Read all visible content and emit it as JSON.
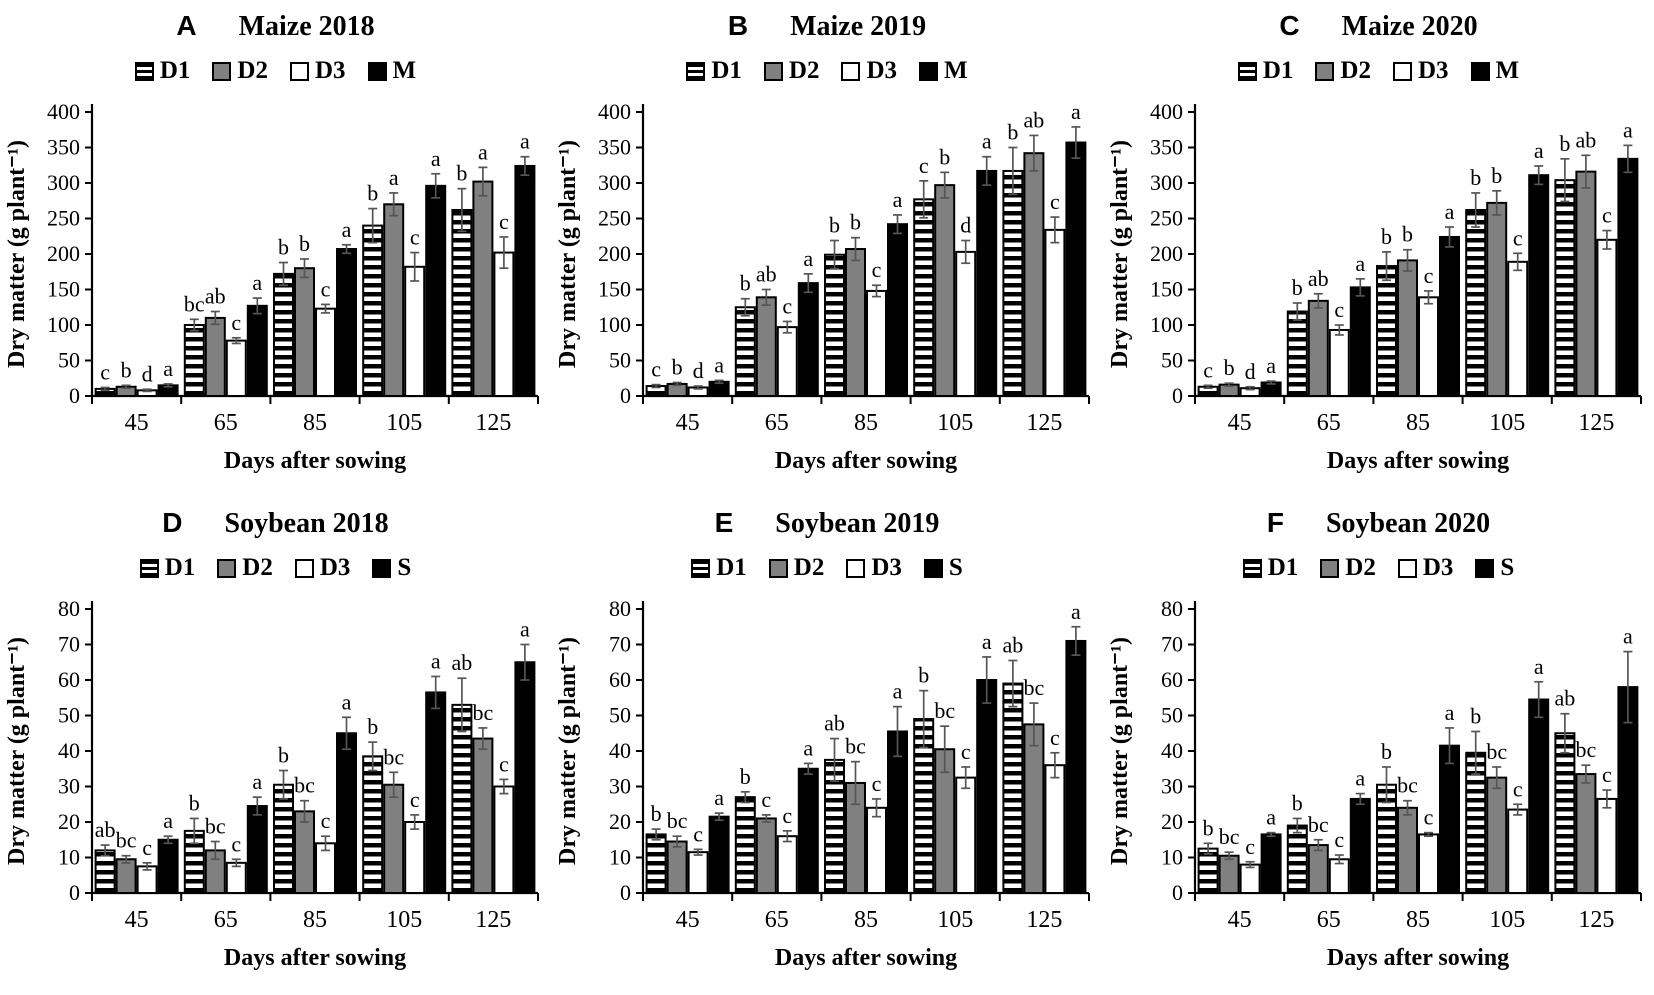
{
  "figure": {
    "background": "#ffffff",
    "xlabel": "Days after sowing",
    "ylabel": "Dry matter (g plant⁻¹)"
  },
  "colors": {
    "bar_gray": "#808080",
    "bar_black": "#000000",
    "bar_white": "#ffffff",
    "bar_outline": "#000000",
    "stripe": "#000000",
    "error_bar": "#555555",
    "axis": "#000000",
    "text": "#000000"
  },
  "chart_data": [
    {
      "type": "bar",
      "panel": "A",
      "title": "Maize 2018",
      "xlabel": "Days after sowing",
      "ylabel": "Dry matter (g plant⁻¹)",
      "categories": [
        "45",
        "65",
        "85",
        "105",
        "125"
      ],
      "ylim": [
        0,
        400
      ],
      "ytick_step": 50,
      "grid": false,
      "legend_position": "top",
      "series": [
        {
          "name": "D1",
          "pattern": "striped",
          "values": [
            10,
            100,
            172,
            240,
            262
          ],
          "errors": [
            2,
            8,
            16,
            24,
            30
          ],
          "letters": [
            "c",
            "bc",
            "b",
            "b",
            "b"
          ]
        },
        {
          "name": "D2",
          "pattern": "gray",
          "values": [
            13,
            110,
            180,
            270,
            302
          ],
          "errors": [
            2,
            9,
            13,
            16,
            20
          ],
          "letters": [
            "b",
            "ab",
            "b",
            "a",
            "a"
          ]
        },
        {
          "name": "D3",
          "pattern": "white",
          "values": [
            8,
            78,
            123,
            182,
            202
          ],
          "errors": [
            1.5,
            4,
            6,
            20,
            22
          ],
          "letters": [
            "d",
            "c",
            "c",
            "c",
            "c"
          ]
        },
        {
          "name": "M",
          "pattern": "black",
          "values": [
            15,
            127,
            207,
            296,
            324
          ],
          "errors": [
            2,
            11,
            6,
            17,
            13
          ],
          "letters": [
            "a",
            "a",
            "a",
            "a",
            "a"
          ]
        }
      ]
    },
    {
      "type": "bar",
      "panel": "B",
      "title": "Maize 2019",
      "xlabel": "Days after sowing",
      "ylabel": "Dry matter (g plant⁻¹)",
      "categories": [
        "45",
        "65",
        "85",
        "105",
        "125"
      ],
      "ylim": [
        0,
        400
      ],
      "ytick_step": 50,
      "grid": false,
      "legend_position": "top",
      "series": [
        {
          "name": "D1",
          "pattern": "striped",
          "values": [
            14,
            125,
            199,
            277,
            317
          ],
          "errors": [
            2,
            12,
            20,
            26,
            33
          ],
          "letters": [
            "c",
            "b",
            "b",
            "c",
            "b"
          ]
        },
        {
          "name": "D2",
          "pattern": "gray",
          "values": [
            17,
            139,
            207,
            297,
            342
          ],
          "errors": [
            2,
            11,
            16,
            18,
            25
          ],
          "letters": [
            "b",
            "ab",
            "b",
            "b",
            "ab"
          ]
        },
        {
          "name": "D3",
          "pattern": "white",
          "values": [
            12,
            97,
            148,
            203,
            234
          ],
          "errors": [
            2,
            8,
            8,
            16,
            18
          ],
          "letters": [
            "d",
            "c",
            "c",
            "d",
            "c"
          ]
        },
        {
          "name": "M",
          "pattern": "black",
          "values": [
            20,
            159,
            242,
            317,
            357
          ],
          "errors": [
            2,
            13,
            13,
            20,
            22
          ],
          "letters": [
            "a",
            "a",
            "a",
            "a",
            "a"
          ]
        }
      ]
    },
    {
      "type": "bar",
      "panel": "C",
      "title": "Maize 2020",
      "xlabel": "Days after sowing",
      "ylabel": "Dry matter (g plant⁻¹)",
      "categories": [
        "45",
        "65",
        "85",
        "105",
        "125"
      ],
      "ylim": [
        0,
        400
      ],
      "ytick_step": 50,
      "grid": false,
      "legend_position": "top",
      "series": [
        {
          "name": "D1",
          "pattern": "striped",
          "values": [
            13,
            119,
            183,
            262,
            304
          ],
          "errors": [
            2,
            12,
            20,
            24,
            30
          ],
          "letters": [
            "c",
            "b",
            "b",
            "b",
            "b"
          ]
        },
        {
          "name": "D2",
          "pattern": "gray",
          "values": [
            16,
            134,
            191,
            272,
            316
          ],
          "errors": [
            2,
            10,
            15,
            17,
            23
          ],
          "letters": [
            "b",
            "ab",
            "b",
            "b",
            "ab"
          ]
        },
        {
          "name": "D3",
          "pattern": "white",
          "values": [
            11,
            93,
            139,
            189,
            220
          ],
          "errors": [
            2,
            7,
            9,
            12,
            13
          ],
          "letters": [
            "d",
            "c",
            "c",
            "c",
            "c"
          ]
        },
        {
          "name": "M",
          "pattern": "black",
          "values": [
            19,
            153,
            224,
            311,
            334
          ],
          "errors": [
            2,
            12,
            14,
            13,
            19
          ],
          "letters": [
            "a",
            "a",
            "a",
            "a",
            "a"
          ]
        }
      ]
    },
    {
      "type": "bar",
      "panel": "D",
      "title": "Soybean 2018",
      "xlabel": "Days after sowing",
      "ylabel": "Dry matter (g plant⁻¹)",
      "categories": [
        "45",
        "65",
        "85",
        "105",
        "125"
      ],
      "ylim": [
        0,
        80
      ],
      "ytick_step": 10,
      "grid": false,
      "legend_position": "top",
      "series": [
        {
          "name": "D1",
          "pattern": "striped",
          "values": [
            12,
            17.5,
            30.5,
            38.5,
            53
          ],
          "errors": [
            1.5,
            3.5,
            4,
            4,
            7.5
          ],
          "letters": [
            "ab",
            "b",
            "b",
            "b",
            "ab"
          ]
        },
        {
          "name": "D2",
          "pattern": "gray",
          "values": [
            9.5,
            12,
            23,
            30.5,
            43.5
          ],
          "errors": [
            1,
            2.5,
            3,
            3.5,
            3
          ],
          "letters": [
            "bc",
            "bc",
            "bc",
            "bc",
            "bc"
          ]
        },
        {
          "name": "D3",
          "pattern": "white",
          "values": [
            7.5,
            8.5,
            14,
            20,
            30
          ],
          "errors": [
            1,
            1,
            2,
            2,
            2
          ],
          "letters": [
            "c",
            "c",
            "c",
            "c",
            "c"
          ]
        },
        {
          "name": "S",
          "pattern": "black",
          "values": [
            15,
            24.5,
            45,
            56.5,
            65
          ],
          "errors": [
            1,
            2.5,
            4.5,
            4.5,
            5
          ],
          "letters": [
            "a",
            "a",
            "a",
            "a",
            "a"
          ]
        }
      ]
    },
    {
      "type": "bar",
      "panel": "E",
      "title": "Soybean 2019",
      "xlabel": "Days after sowing",
      "ylabel": "Dry matter (g plant⁻¹)",
      "categories": [
        "45",
        "65",
        "85",
        "105",
        "125"
      ],
      "ylim": [
        0,
        80
      ],
      "ytick_step": 10,
      "grid": false,
      "legend_position": "top",
      "series": [
        {
          "name": "D1",
          "pattern": "striped",
          "values": [
            16.5,
            27,
            37.5,
            49,
            59
          ],
          "errors": [
            1.5,
            1.5,
            6,
            8,
            6.5
          ],
          "letters": [
            "b",
            "b",
            "ab",
            "b",
            "ab"
          ]
        },
        {
          "name": "D2",
          "pattern": "gray",
          "values": [
            14.5,
            21,
            31,
            40.5,
            47.5
          ],
          "errors": [
            1.5,
            1,
            6,
            6.5,
            6
          ],
          "letters": [
            "bc",
            "c",
            "bc",
            "bc",
            "bc"
          ]
        },
        {
          "name": "D3",
          "pattern": "white",
          "values": [
            11.5,
            16,
            24,
            32.5,
            36
          ],
          "errors": [
            0.8,
            1.5,
            2.5,
            3,
            3.5
          ],
          "letters": [
            "c",
            "c",
            "c",
            "c",
            "c"
          ]
        },
        {
          "name": "S",
          "pattern": "black",
          "values": [
            21.5,
            35,
            45.5,
            60,
            71
          ],
          "errors": [
            1,
            1.5,
            7,
            6.5,
            4
          ],
          "letters": [
            "a",
            "a",
            "a",
            "a",
            "a"
          ]
        }
      ]
    },
    {
      "type": "bar",
      "panel": "F",
      "title": "Soybean 2020",
      "xlabel": "Days after sowing",
      "ylabel": "Dry matter (g plant⁻¹)",
      "categories": [
        "45",
        "65",
        "85",
        "105",
        "125"
      ],
      "ylim": [
        0,
        80
      ],
      "ytick_step": 10,
      "grid": false,
      "legend_position": "top",
      "series": [
        {
          "name": "D1",
          "pattern": "striped",
          "values": [
            12.5,
            19,
            30.5,
            39.5,
            45
          ],
          "errors": [
            1.5,
            2,
            5,
            6,
            5.5
          ],
          "letters": [
            "b",
            "b",
            "b",
            "b",
            "ab"
          ]
        },
        {
          "name": "D2",
          "pattern": "gray",
          "values": [
            10.5,
            13.5,
            24,
            32.5,
            33.5
          ],
          "errors": [
            1,
            1.5,
            2,
            3,
            2.5
          ],
          "letters": [
            "bc",
            "bc",
            "bc",
            "bc",
            "bc"
          ]
        },
        {
          "name": "D3",
          "pattern": "white",
          "values": [
            8,
            9.5,
            16.5,
            23.5,
            26.5
          ],
          "errors": [
            0.8,
            1.2,
            0.5,
            1.5,
            2.5
          ],
          "letters": [
            "c",
            "c",
            "c",
            "c",
            "c"
          ]
        },
        {
          "name": "S",
          "pattern": "black",
          "values": [
            16.5,
            26.5,
            41.5,
            54.5,
            58
          ],
          "errors": [
            0.5,
            1.5,
            5,
            5,
            10
          ],
          "letters": [
            "a",
            "a",
            "a",
            "a",
            "a"
          ]
        }
      ]
    }
  ]
}
